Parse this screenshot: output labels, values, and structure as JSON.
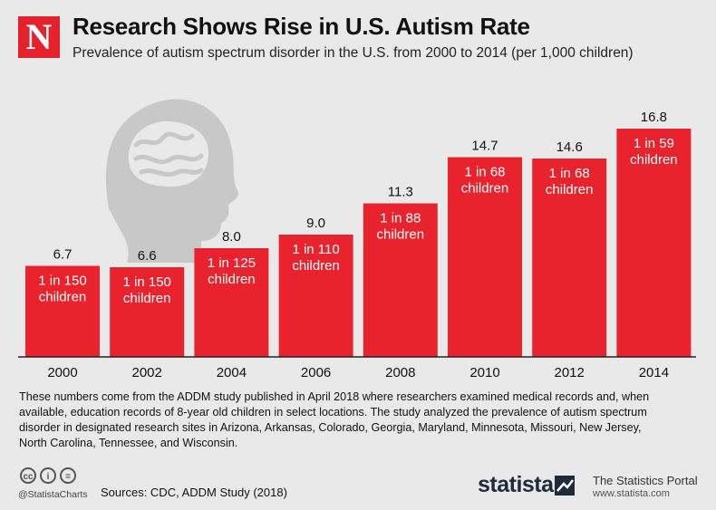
{
  "header": {
    "logo_letter": "N",
    "title": "Research Shows Rise in U.S. Autism Rate",
    "subtitle": "Prevalence of autism spectrum disorder in the U.S. from 2000 to 2014 (per 1,000 children)"
  },
  "chart_data": {
    "type": "bar",
    "categories": [
      "2000",
      "2002",
      "2004",
      "2006",
      "2008",
      "2010",
      "2012",
      "2014"
    ],
    "values": [
      6.7,
      6.6,
      8.0,
      9.0,
      11.3,
      14.7,
      14.6,
      16.8
    ],
    "value_labels": [
      "6.7",
      "6.6",
      "8.0",
      "9.0",
      "11.3",
      "14.7",
      "14.6",
      "16.8"
    ],
    "bar_notes": [
      [
        "1 in 150",
        "children"
      ],
      [
        "1 in 150",
        "children"
      ],
      [
        "1 in 125",
        "children"
      ],
      [
        "1 in 110",
        "children"
      ],
      [
        "1 in 88",
        "children"
      ],
      [
        "1 in 68",
        "children"
      ],
      [
        "1 in 68",
        "children"
      ],
      [
        "1 in 59",
        "children"
      ]
    ],
    "ylim": [
      0,
      18
    ],
    "bar_color": "#e8232d",
    "grid": false
  },
  "footnote": "These numbers come from the ADDM study published in April 2018 where researchers examined medical records and, when available, education records of 8-year old children in select locations. The study analyzed the prevalence of autism spectrum disorder in designated research sites in Arizona, Arkansas, Colorado, Georgia, Maryland, Minnesota, Missouri, New Jersey, North Carolina, Tennessee, and Wisconsin.",
  "footer": {
    "license_icons": [
      "cc",
      "i",
      "="
    ],
    "handle": "@StatistaCharts",
    "sources": "Sources: CDC, ADDM Study (2018)",
    "brand": "statista",
    "portal": "The Statistics Portal",
    "url": "www.statista.com"
  },
  "colors": {
    "accent": "#e4212d",
    "background": "#e9e9e9",
    "brand_dark": "#1d2b3a"
  }
}
